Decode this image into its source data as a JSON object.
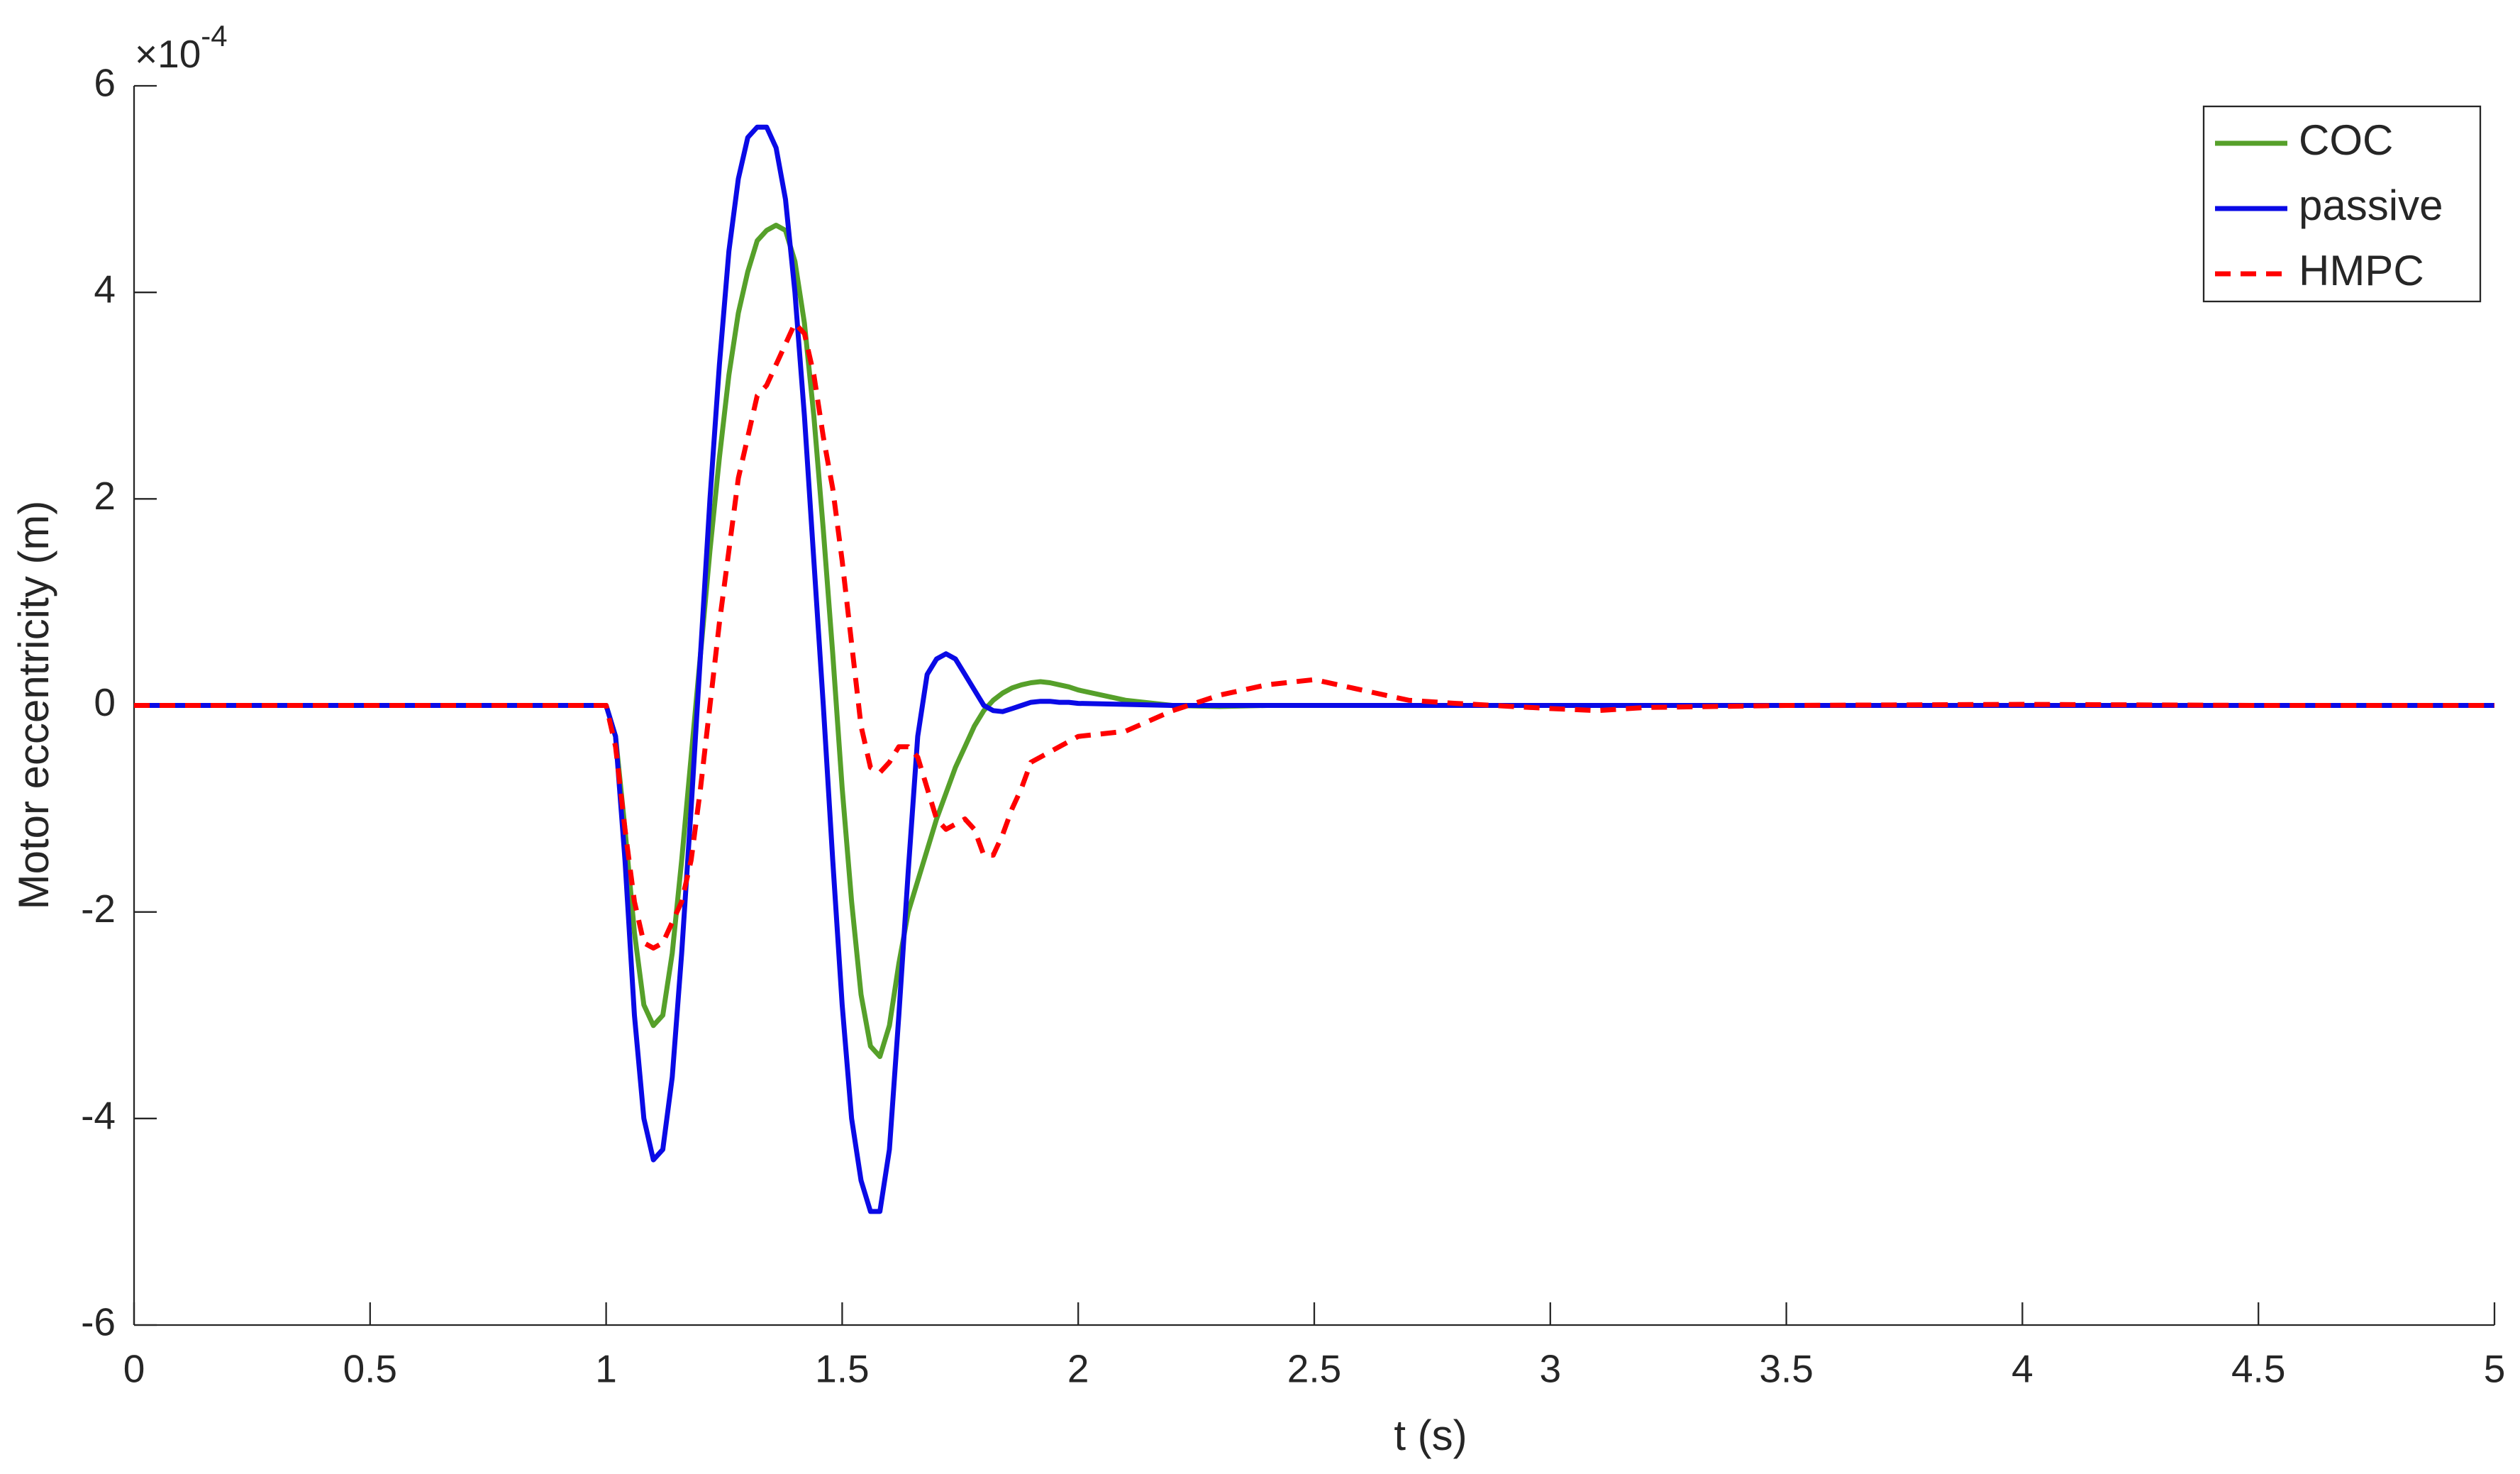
{
  "chart_data": {
    "type": "line",
    "x_label": "t (s)",
    "y_label": "Motor eccentricity (m)",
    "y_multiplier": {
      "base": "×10",
      "exponent": "-4"
    },
    "x": [
      0,
      0.5,
      1.0,
      1.02,
      1.04,
      1.06,
      1.08,
      1.1,
      1.12,
      1.14,
      1.16,
      1.18,
      1.2,
      1.22,
      1.24,
      1.26,
      1.28,
      1.3,
      1.32,
      1.34,
      1.36,
      1.38,
      1.4,
      1.42,
      1.44,
      1.46,
      1.48,
      1.5,
      1.52,
      1.54,
      1.56,
      1.58,
      1.6,
      1.62,
      1.64,
      1.66,
      1.68,
      1.7,
      1.72,
      1.74,
      1.76,
      1.78,
      1.8,
      1.82,
      1.84,
      1.86,
      1.88,
      1.9,
      1.92,
      1.94,
      1.96,
      1.98,
      2.0,
      2.1,
      2.2,
      2.3,
      2.4,
      2.5,
      2.6,
      2.7,
      2.8,
      3.0,
      3.1,
      3.2,
      3.5,
      4,
      4.5,
      5
    ],
    "series": [
      {
        "name": "COC",
        "color": "#56a02a",
        "dash": false,
        "values": [
          0,
          0,
          0,
          -0.3,
          -1.2,
          -2.2,
          -2.9,
          -3.1,
          -3.0,
          -2.4,
          -1.5,
          -0.5,
          0.5,
          1.5,
          2.4,
          3.2,
          3.8,
          4.2,
          4.5,
          4.6,
          4.65,
          4.6,
          4.3,
          3.7,
          2.8,
          1.7,
          0.5,
          -0.8,
          -1.9,
          -2.8,
          -3.3,
          -3.4,
          -3.1,
          -2.5,
          -2.0,
          -1.7,
          -1.4,
          -1.1,
          -0.85,
          -0.6,
          -0.4,
          -0.2,
          -0.05,
          0.05,
          0.12,
          0.17,
          0.2,
          0.22,
          0.23,
          0.22,
          0.2,
          0.18,
          0.15,
          0.05,
          0,
          -0.01,
          0,
          0,
          0,
          0,
          0,
          0,
          0,
          0,
          0,
          0,
          0,
          0
        ]
      },
      {
        "name": "passive",
        "color": "#0a0ae6",
        "dash": false,
        "values": [
          0,
          0,
          0,
          -0.3,
          -1.5,
          -3.0,
          -4.0,
          -4.4,
          -4.3,
          -3.6,
          -2.4,
          -1.0,
          0.5,
          2.0,
          3.3,
          4.4,
          5.1,
          5.5,
          5.6,
          5.6,
          5.4,
          4.9,
          4.0,
          2.8,
          1.4,
          0,
          -1.5,
          -2.9,
          -4.0,
          -4.6,
          -4.9,
          -4.9,
          -4.3,
          -3.0,
          -1.6,
          -0.3,
          0.3,
          0.45,
          0.5,
          0.45,
          0.3,
          0.15,
          0.0,
          -0.05,
          -0.06,
          -0.03,
          0,
          0.03,
          0.04,
          0.04,
          0.03,
          0.03,
          0.02,
          0.01,
          0,
          0,
          0,
          0,
          0,
          0,
          0,
          0,
          0,
          0,
          0,
          0,
          0,
          0
        ]
      },
      {
        "name": "HMPC",
        "color": "#ff0000",
        "dash": true,
        "values": [
          0,
          0,
          0,
          -0.4,
          -1.2,
          -1.9,
          -2.3,
          -2.35,
          -2.3,
          -2.1,
          -1.9,
          -1.5,
          -0.8,
          0,
          0.8,
          1.5,
          2.2,
          2.6,
          3.0,
          3.1,
          3.3,
          3.5,
          3.7,
          3.6,
          3.2,
          2.6,
          2.1,
          1.4,
          0.6,
          -0.2,
          -0.6,
          -0.65,
          -0.55,
          -0.4,
          -0.4,
          -0.5,
          -0.8,
          -1.1,
          -1.2,
          -1.15,
          -1.1,
          -1.2,
          -1.45,
          -1.45,
          -1.25,
          -1.0,
          -0.8,
          -0.55,
          -0.5,
          -0.45,
          -0.4,
          -0.35,
          -0.3,
          -0.25,
          -0.05,
          0.1,
          0.2,
          0.25,
          0.15,
          0.05,
          0.02,
          -0.03,
          -0.05,
          -0.02,
          0,
          0.01,
          0,
          0
        ]
      }
    ],
    "xlim": [
      0,
      5
    ],
    "ylim": [
      -6,
      6
    ],
    "xticks": [
      0,
      0.5,
      1,
      1.5,
      2,
      2.5,
      3,
      3.5,
      4,
      4.5,
      5
    ],
    "yticks": [
      -6,
      -4,
      -2,
      0,
      2,
      4,
      6
    ],
    "legend": "top-right",
    "grid": false
  }
}
